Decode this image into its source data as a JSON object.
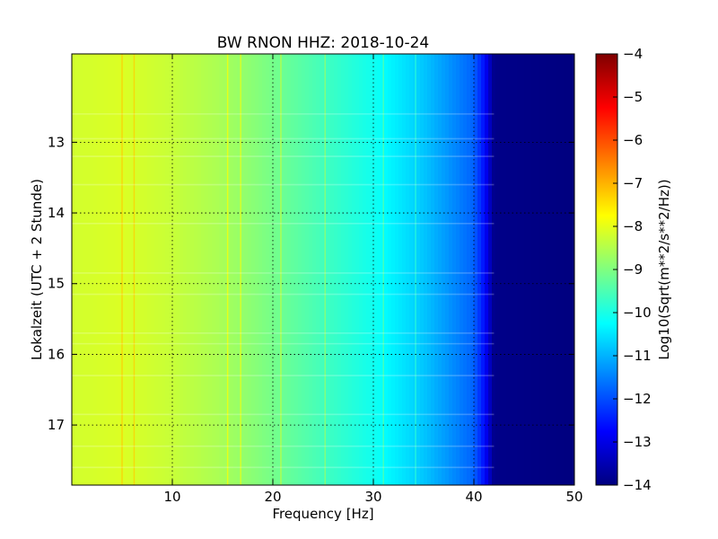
{
  "chart_data": {
    "type": "heatmap",
    "title": "BW RNON HHZ: 2018-10-24",
    "xlabel": "Frequency [Hz]",
    "ylabel": "Lokalzeit (UTC + 2 Stunde)",
    "xlim": [
      0,
      50
    ],
    "ylim": [
      11.75,
      17.85
    ],
    "y_inverted": true,
    "x_ticks": [
      10,
      20,
      30,
      40,
      50
    ],
    "y_ticks": [
      13,
      14,
      15,
      16,
      17
    ],
    "grid": true,
    "colormap": "jet",
    "colorbar": {
      "label": "Log10(Sqrt(m**2/s**2/Hz))",
      "range": [
        -14,
        -4
      ],
      "ticks": [
        -4,
        -5,
        -6,
        -7,
        -8,
        -9,
        -10,
        -11,
        -12,
        -13,
        -14
      ]
    },
    "spectrum_profile": {
      "frequency_hz": [
        0,
        5,
        10,
        15,
        20,
        25,
        30,
        35,
        40,
        41,
        42,
        50
      ],
      "value": [
        -8.2,
        -8.1,
        -8.3,
        -8.6,
        -9.1,
        -9.6,
        -10.1,
        -10.8,
        -11.8,
        -12.6,
        -13.9,
        -14.0
      ]
    },
    "vertical_lines_hz": [
      5.0,
      6.2,
      15.5,
      16.8,
      20.8,
      25.2,
      31.0,
      34.2
    ],
    "horizontal_lines_time": [
      12.6,
      12.95,
      13.2,
      13.6,
      14.15,
      14.85,
      15.15,
      15.7,
      15.85,
      16.3,
      16.85,
      17.3,
      17.6
    ]
  }
}
